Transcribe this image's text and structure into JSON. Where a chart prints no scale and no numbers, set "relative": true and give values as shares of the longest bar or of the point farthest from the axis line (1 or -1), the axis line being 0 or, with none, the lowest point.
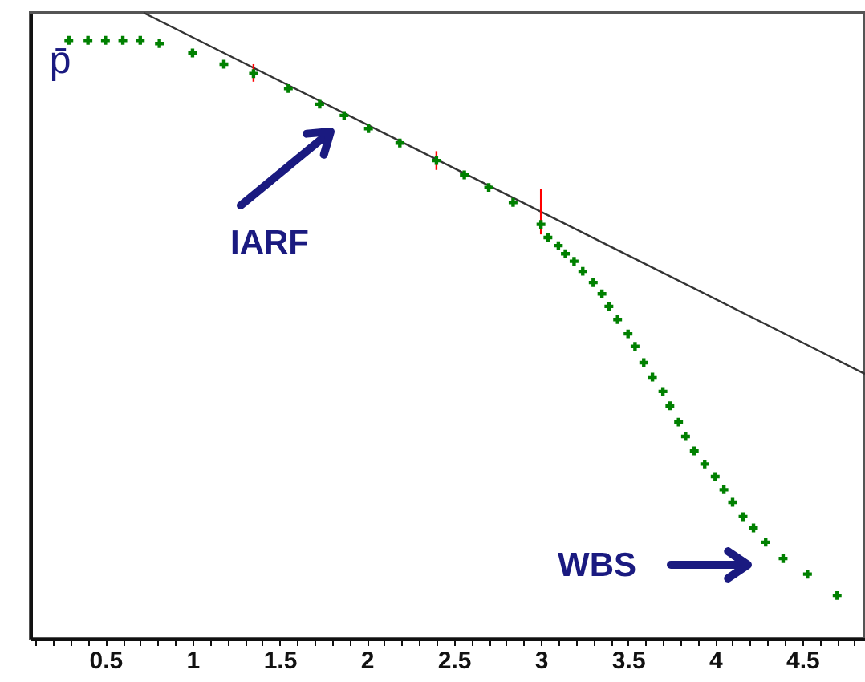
{
  "chart_data": {
    "type": "scatter",
    "relative": true,
    "ylabel": "p̄",
    "xlim": [
      0.07,
      4.86
    ],
    "xticks": [
      {
        "value": 0.1,
        "label": null
      },
      {
        "value": 0.2,
        "label": null
      },
      {
        "value": 0.3,
        "label": null
      },
      {
        "value": 0.4,
        "label": null
      },
      0.5,
      {
        "value": 0.6,
        "label": null
      },
      {
        "value": 0.7,
        "label": null
      },
      {
        "value": 0.8,
        "label": null
      },
      {
        "value": 0.9,
        "label": null
      },
      1,
      {
        "value": 1.1,
        "label": null
      },
      {
        "value": 1.2,
        "label": null
      },
      {
        "value": 1.3,
        "label": null
      },
      {
        "value": 1.4,
        "label": null
      },
      1.5,
      {
        "value": 1.6,
        "label": null
      },
      {
        "value": 1.7,
        "label": null
      },
      {
        "value": 1.8,
        "label": null
      },
      {
        "value": 1.9,
        "label": null
      },
      2,
      {
        "value": 2.1,
        "label": null
      },
      {
        "value": 2.2,
        "label": null
      },
      {
        "value": 2.3,
        "label": null
      },
      {
        "value": 2.4,
        "label": null
      },
      2.5,
      {
        "value": 2.6,
        "label": null
      },
      {
        "value": 2.7,
        "label": null
      },
      {
        "value": 2.8,
        "label": null
      },
      {
        "value": 2.9,
        "label": null
      },
      3,
      {
        "value": 3.1,
        "label": null
      },
      {
        "value": 3.2,
        "label": null
      },
      {
        "value": 3.3,
        "label": null
      },
      {
        "value": 3.4,
        "label": null
      },
      3.5,
      {
        "value": 3.6,
        "label": null
      },
      {
        "value": 3.7,
        "label": null
      },
      {
        "value": 3.8,
        "label": null
      },
      {
        "value": 3.9,
        "label": null
      },
      4,
      {
        "value": 4.1,
        "label": null
      },
      {
        "value": 4.2,
        "label": null
      },
      {
        "value": 4.3,
        "label": null
      },
      {
        "value": 4.4,
        "label": null
      },
      4.5,
      {
        "value": 4.6,
        "label": null
      },
      {
        "value": 4.7,
        "label": null
      },
      {
        "value": 4.8,
        "label": null
      }
    ],
    "series": [
      {
        "marker": "cross",
        "color": "#008000",
        "x": [
          0.29,
          0.4,
          0.5,
          0.6,
          0.7,
          0.81,
          1.0,
          1.18,
          1.35,
          1.55,
          1.73,
          1.87,
          2.01,
          2.19,
          2.4,
          2.56,
          2.7,
          2.84,
          3.0,
          3.04,
          3.1,
          3.14,
          3.19,
          3.24,
          3.3,
          3.35,
          3.39,
          3.44,
          3.5,
          3.54,
          3.59,
          3.64,
          3.7,
          3.74,
          3.79,
          3.83,
          3.88,
          3.94,
          4.0,
          4.05,
          4.1,
          4.16,
          4.22,
          4.29,
          4.39,
          4.53,
          4.7
        ],
        "values": [
          0.956,
          0.956,
          0.956,
          0.956,
          0.956,
          0.951,
          0.936,
          0.918,
          0.903,
          0.879,
          0.854,
          0.836,
          0.815,
          0.792,
          0.764,
          0.741,
          0.721,
          0.697,
          0.662,
          0.641,
          0.628,
          0.615,
          0.603,
          0.587,
          0.569,
          0.551,
          0.531,
          0.51,
          0.487,
          0.467,
          0.441,
          0.418,
          0.395,
          0.372,
          0.346,
          0.323,
          0.3,
          0.279,
          0.259,
          0.238,
          0.218,
          0.195,
          0.177,
          0.154,
          0.128,
          0.103,
          0.069
        ]
      },
      {
        "type": "line",
        "color": "#333333",
        "x": [
          0.72,
          4.86
        ],
        "values": [
          1.0,
          0.423
        ]
      },
      {
        "type": "line",
        "color": "#ff0000",
        "x": [
          1.35,
          1.35
        ],
        "values": [
          0.89,
          0.918
        ]
      },
      {
        "type": "line",
        "color": "#ff0000",
        "x": [
          2.4,
          2.4
        ],
        "values": [
          0.749,
          0.779
        ]
      },
      {
        "type": "line",
        "color": "#ff0000",
        "x": [
          3.0,
          3.0
        ],
        "values": [
          0.646,
          0.718
        ]
      }
    ],
    "annotations": [
      "IARF",
      "WBS"
    ]
  }
}
